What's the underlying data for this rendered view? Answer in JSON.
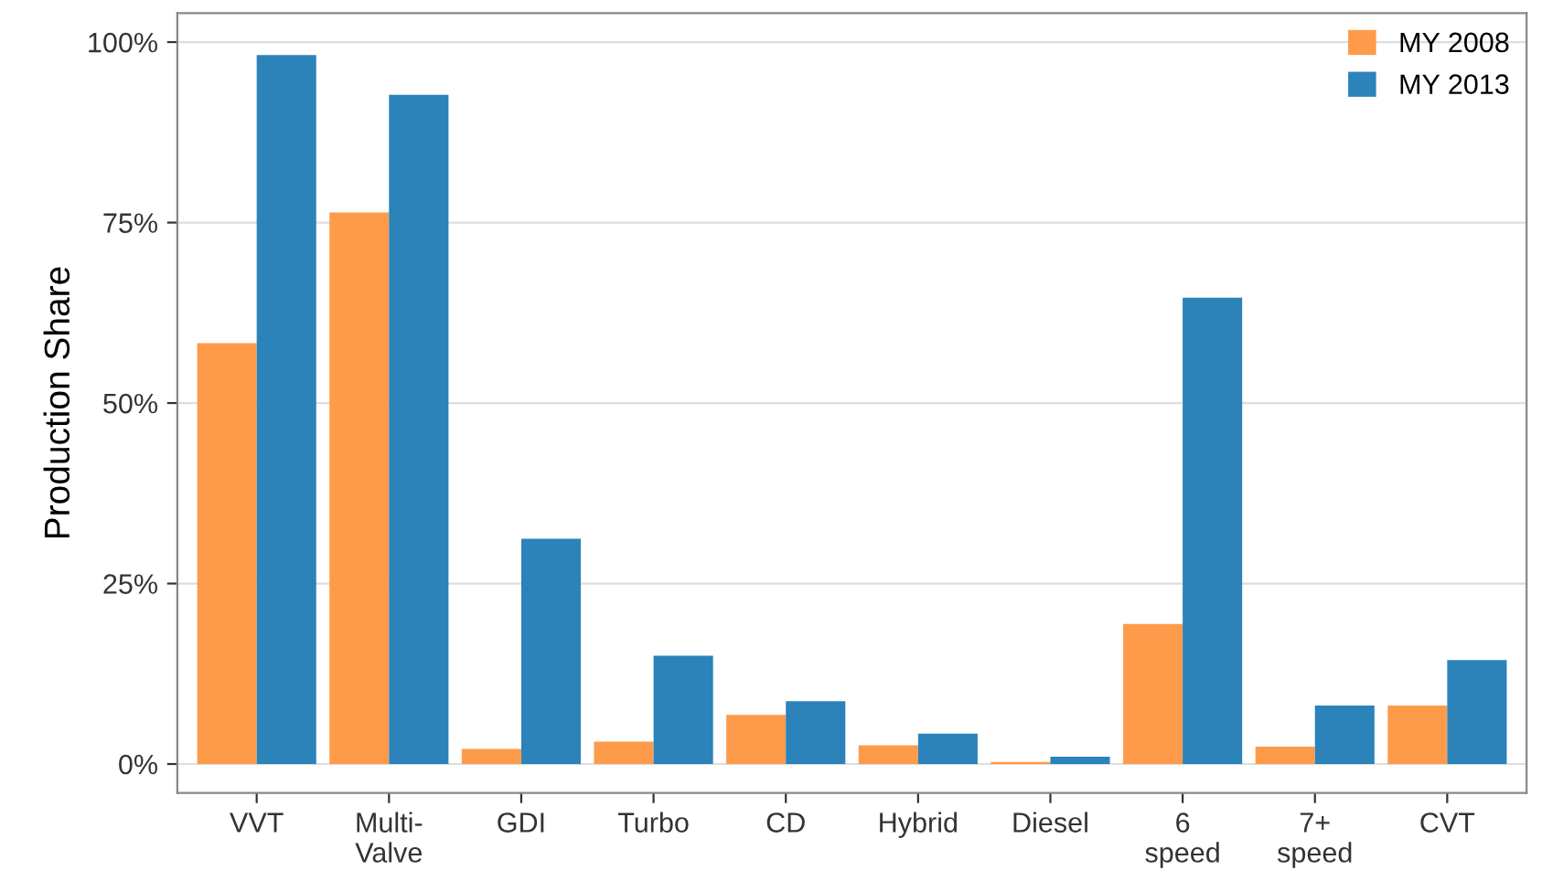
{
  "chart_data": {
    "type": "bar",
    "ylabel": "Production Share",
    "categories": [
      "VVT",
      "Multi-\nValve",
      "GDI",
      "Turbo",
      "CD",
      "Hybrid",
      "Diesel",
      "6\nspeed",
      "7+\nspeed",
      "CVT"
    ],
    "series": [
      {
        "name": "MY 2008",
        "color": "#fe9b4b",
        "values": [
          58.3,
          76.4,
          2.1,
          3.1,
          6.8,
          2.6,
          0.3,
          19.4,
          2.4,
          8.1
        ]
      },
      {
        "name": "MY 2013",
        "color": "#2b83ba",
        "values": [
          98.2,
          92.7,
          31.2,
          15.0,
          8.7,
          4.2,
          1.0,
          64.6,
          8.1,
          14.4
        ]
      }
    ],
    "ylim": [
      -4,
      104
    ],
    "yticks": [
      {
        "value": 0,
        "label": "0%"
      },
      {
        "value": 25,
        "label": "25%"
      },
      {
        "value": 50,
        "label": "50%"
      },
      {
        "value": 75,
        "label": "75%"
      },
      {
        "value": 100,
        "label": "100%"
      }
    ],
    "grid": "y",
    "legend": "top right"
  }
}
